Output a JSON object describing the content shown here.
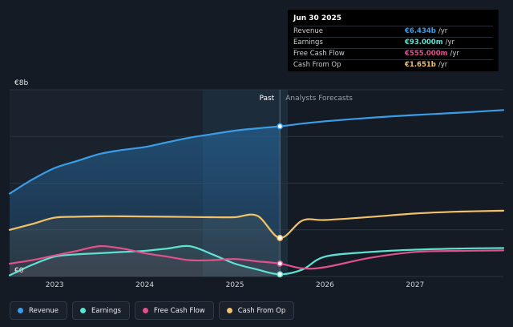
{
  "colors": {
    "revenue": "#3a9de8",
    "earnings": "#5ee3d2",
    "fcf": "#e0528c",
    "cfo": "#f2c26b"
  },
  "tooltip": {
    "date": "Jun 30 2025",
    "rows": [
      {
        "label": "Revenue",
        "value": "€6.434b",
        "unit": "/yr",
        "color": "#3a9de8"
      },
      {
        "label": "Earnings",
        "value": "€93.000m",
        "unit": "/yr",
        "color": "#5ee3d2"
      },
      {
        "label": "Free Cash Flow",
        "value": "€555.000m",
        "unit": "/yr",
        "color": "#e0528c"
      },
      {
        "label": "Cash From Op",
        "value": "€1.651b",
        "unit": "/yr",
        "color": "#f2c26b"
      }
    ]
  },
  "legend": [
    {
      "label": "Revenue",
      "color": "#3a9de8"
    },
    {
      "label": "Earnings",
      "color": "#5ee3d2"
    },
    {
      "label": "Free Cash Flow",
      "color": "#e0528c"
    },
    {
      "label": "Cash From Op",
      "color": "#f2c26b"
    }
  ],
  "chart_data": {
    "type": "line",
    "y_top_label": "€8b",
    "y_bottom_label": "€0",
    "ylim": [
      0,
      8
    ],
    "xlim": [
      2022.5,
      2027.98
    ],
    "divider_x": 2025.5,
    "past_label": "Past",
    "forecast_label": "Analysts Forecasts",
    "x_ticks": [
      "2023",
      "2024",
      "2025",
      "2026",
      "2027"
    ],
    "x_tick_values": [
      2023,
      2024,
      2025,
      2026,
      2027
    ],
    "grid": true,
    "series": [
      {
        "name": "Revenue",
        "key": "revenue",
        "x": [
          2022.5,
          2022.75,
          2023.0,
          2023.25,
          2023.5,
          2023.75,
          2024.0,
          2024.25,
          2024.5,
          2024.75,
          2025.0,
          2025.25,
          2025.5,
          2025.75,
          2026.0,
          2026.5,
          2027.0,
          2027.5,
          2027.98
        ],
        "y": [
          3.55,
          4.15,
          4.65,
          4.95,
          5.25,
          5.42,
          5.55,
          5.75,
          5.95,
          6.1,
          6.25,
          6.35,
          6.434,
          6.55,
          6.65,
          6.8,
          6.92,
          7.02,
          7.13
        ]
      },
      {
        "name": "Earnings",
        "key": "earnings",
        "x": [
          2022.5,
          2022.75,
          2023.0,
          2023.25,
          2023.5,
          2023.75,
          2024.0,
          2024.25,
          2024.5,
          2024.75,
          2025.0,
          2025.25,
          2025.5,
          2025.75,
          2026.0,
          2026.5,
          2027.0,
          2027.5,
          2027.98
        ],
        "y": [
          0.05,
          0.5,
          0.85,
          0.95,
          1.0,
          1.05,
          1.1,
          1.2,
          1.3,
          0.95,
          0.55,
          0.3,
          0.093,
          0.3,
          0.85,
          1.05,
          1.15,
          1.2,
          1.22
        ]
      },
      {
        "name": "Free Cash Flow",
        "key": "fcf",
        "x": [
          2022.5,
          2022.75,
          2023.0,
          2023.25,
          2023.5,
          2023.75,
          2024.0,
          2024.25,
          2024.5,
          2024.75,
          2025.0,
          2025.25,
          2025.5,
          2025.75,
          2026.0,
          2026.5,
          2027.0,
          2027.5,
          2027.98
        ],
        "y": [
          0.55,
          0.7,
          0.9,
          1.1,
          1.3,
          1.2,
          1.0,
          0.85,
          0.7,
          0.7,
          0.75,
          0.65,
          0.555,
          0.35,
          0.4,
          0.8,
          1.05,
          1.1,
          1.12
        ]
      },
      {
        "name": "Cash From Op",
        "key": "cfo",
        "x": [
          2022.5,
          2022.75,
          2023.0,
          2023.25,
          2023.5,
          2023.75,
          2024.0,
          2024.25,
          2024.5,
          2024.75,
          2025.0,
          2025.25,
          2025.5,
          2025.75,
          2026.0,
          2026.5,
          2027.0,
          2027.5,
          2027.98
        ],
        "y": [
          2.0,
          2.25,
          2.52,
          2.56,
          2.58,
          2.58,
          2.57,
          2.56,
          2.55,
          2.54,
          2.54,
          2.6,
          1.651,
          2.4,
          2.42,
          2.55,
          2.7,
          2.78,
          2.82
        ]
      }
    ]
  }
}
